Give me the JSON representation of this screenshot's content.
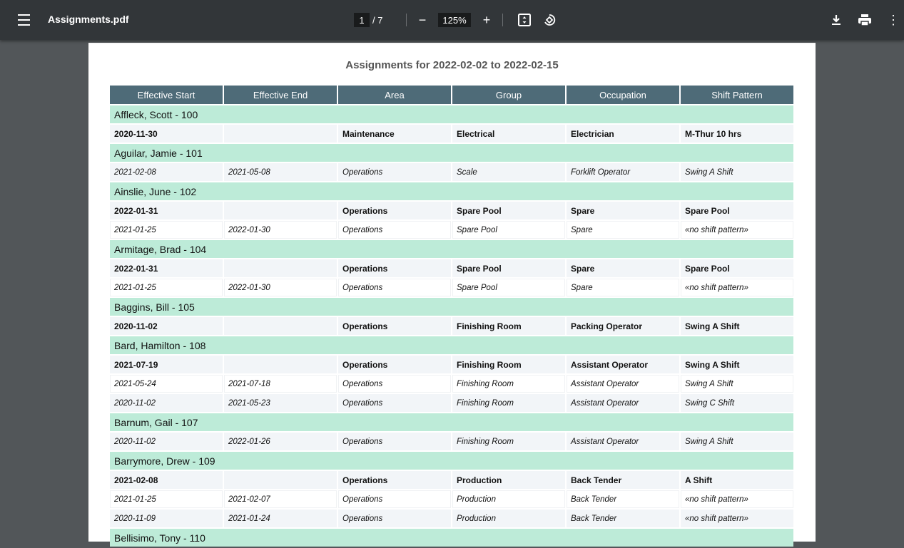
{
  "toolbar": {
    "title": "Assignments.pdf",
    "page_current": "1",
    "page_total": "/  7",
    "zoom": "125%"
  },
  "document": {
    "title": "Assignments for 2022-02-02 to 2022-02-15",
    "columns": [
      "Effective Start",
      "Effective End",
      "Area",
      "Group",
      "Occupation",
      "Shift Pattern"
    ],
    "groups": [
      {
        "name": "Affleck, Scott - 100",
        "rows": [
          {
            "current": true,
            "cells": [
              "2020-11-30",
              "",
              "Maintenance",
              "Electrical",
              "Electrician",
              "M-Thur 10 hrs"
            ]
          }
        ]
      },
      {
        "name": "Aguilar, Jamie - 101",
        "rows": [
          {
            "current": false,
            "cells": [
              "2021-02-08",
              "2021-05-08",
              "Operations",
              "Scale",
              "Forklift Operator",
              "Swing A Shift"
            ]
          }
        ]
      },
      {
        "name": "Ainslie, June - 102",
        "rows": [
          {
            "current": true,
            "cells": [
              "2022-01-31",
              "",
              "Operations",
              "Spare Pool",
              "Spare",
              "Spare Pool"
            ]
          },
          {
            "current": false,
            "cells": [
              "2021-01-25",
              "2022-01-30",
              "Operations",
              "Spare Pool",
              "Spare",
              "«no shift pattern»"
            ]
          }
        ]
      },
      {
        "name": "Armitage, Brad - 104",
        "rows": [
          {
            "current": true,
            "cells": [
              "2022-01-31",
              "",
              "Operations",
              "Spare Pool",
              "Spare",
              "Spare Pool"
            ]
          },
          {
            "current": false,
            "cells": [
              "2021-01-25",
              "2022-01-30",
              "Operations",
              "Spare Pool",
              "Spare",
              "«no shift pattern»"
            ]
          }
        ]
      },
      {
        "name": "Baggins, Bill - 105",
        "rows": [
          {
            "current": true,
            "cells": [
              "2020-11-02",
              "",
              "Operations",
              "Finishing Room",
              "Packing Operator",
              "Swing A Shift"
            ]
          }
        ]
      },
      {
        "name": "Bard, Hamilton - 108",
        "rows": [
          {
            "current": true,
            "cells": [
              "2021-07-19",
              "",
              "Operations",
              "Finishing Room",
              "Assistant Operator",
              "Swing A Shift"
            ]
          },
          {
            "current": false,
            "cells": [
              "2021-05-24",
              "2021-07-18",
              "Operations",
              "Finishing Room",
              "Assistant Operator",
              "Swing A Shift"
            ]
          },
          {
            "current": false,
            "cells": [
              "2020-11-02",
              "2021-05-23",
              "Operations",
              "Finishing Room",
              "Assistant Operator",
              "Swing C Shift"
            ]
          }
        ]
      },
      {
        "name": "Barnum, Gail - 107",
        "rows": [
          {
            "current": false,
            "cells": [
              "2020-11-02",
              "2022-01-26",
              "Operations",
              "Finishing Room",
              "Assistant Operator",
              "Swing A Shift"
            ]
          }
        ]
      },
      {
        "name": "Barrymore, Drew - 109",
        "rows": [
          {
            "current": true,
            "cells": [
              "2021-02-08",
              "",
              "Operations",
              "Production",
              "Back Tender",
              "A Shift"
            ]
          },
          {
            "current": false,
            "cells": [
              "2021-01-25",
              "2021-02-07",
              "Operations",
              "Production",
              "Back Tender",
              "«no shift pattern»"
            ]
          },
          {
            "current": false,
            "cells": [
              "2020-11-09",
              "2021-01-24",
              "Operations",
              "Production",
              "Back Tender",
              "«no shift pattern»"
            ]
          }
        ]
      },
      {
        "name": "Bellisimo, Tony - 110",
        "rows": []
      }
    ]
  },
  "colors": {
    "toolbar": "#323639",
    "header": "#4e6b78",
    "group_row": "#bdebd8",
    "background": "#525659"
  }
}
